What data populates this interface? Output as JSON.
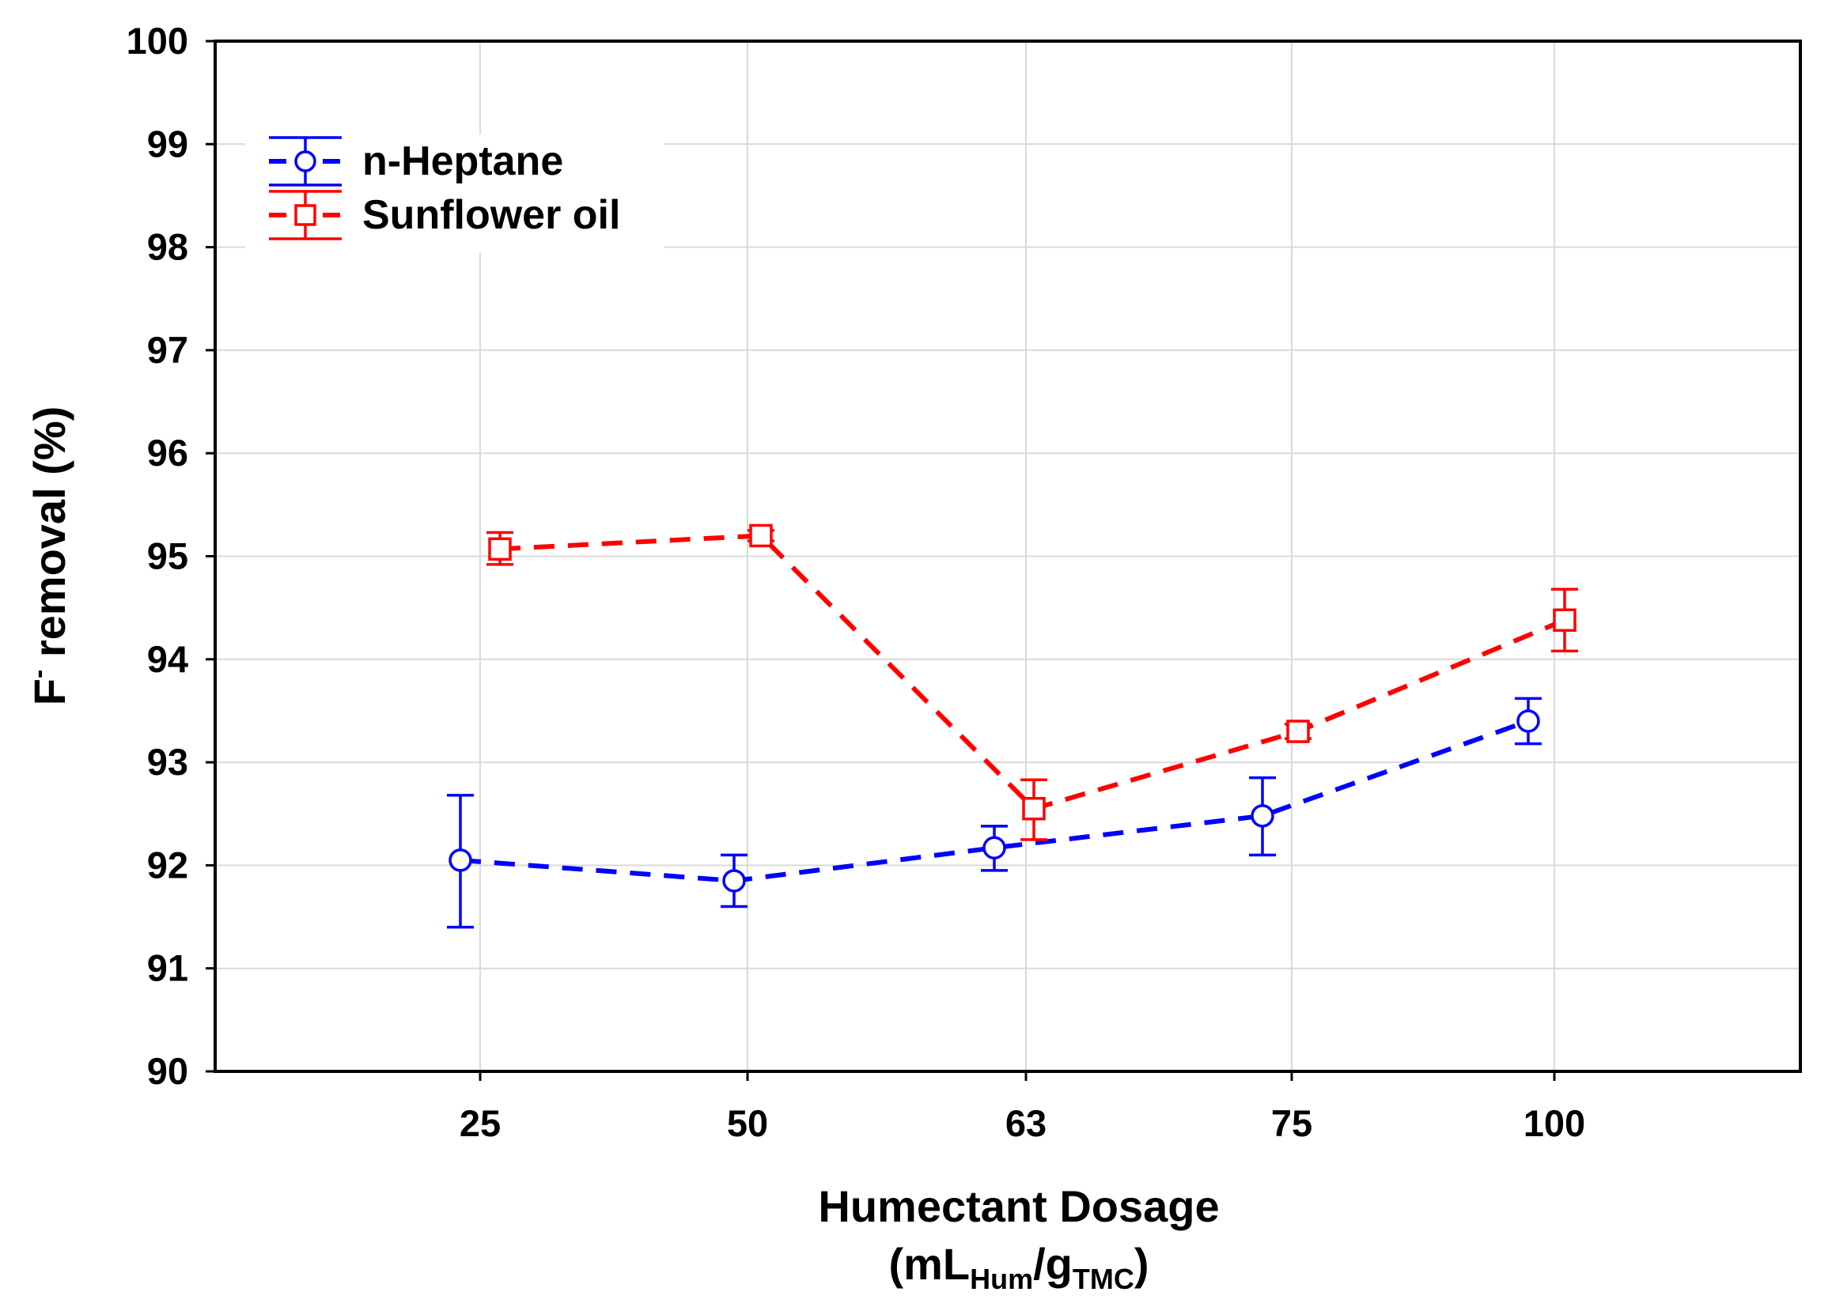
{
  "chart_data": {
    "type": "line",
    "title": "",
    "xlabel_line1": "Humectant Dosage",
    "xlabel_line2": {
      "open": "(mL",
      "sub1": "Hum",
      "mid": "/g",
      "sub2": "TMC",
      "close": ")"
    },
    "ylabel": {
      "main": "F",
      "sup": "-",
      "rest": " removal (%)"
    },
    "categories": [
      "25",
      "50",
      "63",
      "75",
      "100"
    ],
    "ylim": [
      90,
      100
    ],
    "yticks": [
      90,
      91,
      92,
      93,
      94,
      95,
      96,
      97,
      98,
      99,
      100
    ],
    "grid": true,
    "legend_position": "top-left",
    "series": [
      {
        "name": "n-Heptane",
        "color": "#0000ff",
        "marker": "circle",
        "line_style": "dashed",
        "values": [
          92.05,
          91.85,
          92.17,
          92.48,
          93.4
        ],
        "error_low": [
          91.4,
          91.6,
          91.95,
          92.1,
          93.18
        ],
        "error_high": [
          92.68,
          92.1,
          92.38,
          92.85,
          93.62
        ]
      },
      {
        "name": "Sunflower oil",
        "color": "#ff0000",
        "marker": "square",
        "line_style": "dashed",
        "values": [
          95.07,
          95.2,
          92.55,
          93.3,
          94.38
        ],
        "error_low": [
          94.92,
          95.15,
          92.25,
          93.23,
          94.08
        ],
        "error_high": [
          95.23,
          95.25,
          92.83,
          93.37,
          94.68
        ]
      }
    ]
  }
}
